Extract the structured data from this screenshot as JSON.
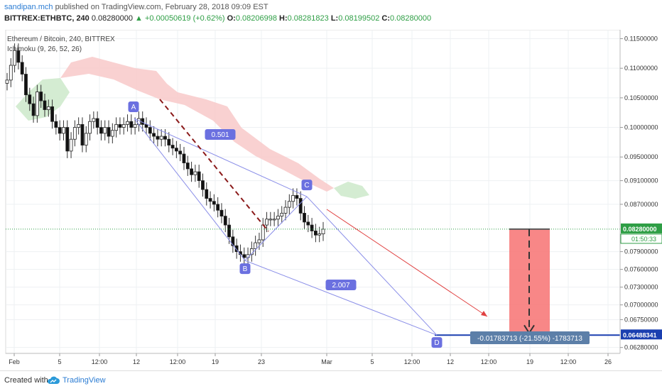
{
  "header": {
    "author": "sandipan.mch",
    "published_text": "published on TradingView.com, February 28, 2018 09:09 EST",
    "symbol": "BITTREX:ETHBTC, 240",
    "last": "0.08280000",
    "change": "▲ +0.00050619 (+0.62%)",
    "o_label": "O:",
    "o": "0.08206998",
    "h_label": "H:",
    "h": "0.08281823",
    "l_label": "L:",
    "l": "0.08199502",
    "c_label": "C:",
    "c": "0.08280000"
  },
  "legend": {
    "title": "Ethereum / Bitcoin, 240, BITTREX",
    "indicator": "Ichimoku (9, 26, 52, 26)"
  },
  "chart_data": {
    "type": "candlestick",
    "ylim": [
      0.0618,
      0.1165
    ],
    "y_ticks": [
      "0.11500000",
      "0.11000000",
      "0.10500000",
      "0.10000000",
      "0.09500000",
      "0.09100000",
      "0.08700000",
      "0.07900000",
      "0.07600000",
      "0.07300000",
      "0.07000000",
      "0.06750000",
      "0.06280000"
    ],
    "x_ticks": [
      "Feb",
      "5",
      "12:00",
      "12",
      "12:00",
      "19",
      "23",
      "Mar",
      "5",
      "12:00",
      "12",
      "12:00",
      "19",
      "12:00",
      "26"
    ],
    "price_label": "0.08280000",
    "timer_label": "01:50:33",
    "target_label": "0.06488341",
    "current_price": 0.0828,
    "target_price": 0.06488341,
    "pattern_points": [
      {
        "name": "A",
        "price": 0.1015
      },
      {
        "name": "B",
        "price": 0.0775
      },
      {
        "name": "C",
        "price": 0.0883
      },
      {
        "name": "D",
        "price": 0.0649
      }
    ],
    "ratios": [
      "0.501",
      "2.007"
    ],
    "measure_label": "-0.01783713 (-21.55%) -1783713",
    "approx_closes": [
      0.108,
      0.1105,
      0.113,
      0.111,
      0.109,
      0.1055,
      0.104,
      0.102,
      0.106,
      0.1045,
      0.103,
      0.1035,
      0.101,
      0.1,
      0.099,
      0.1,
      0.096,
      0.098,
      0.1,
      0.1005,
      0.097,
      0.099,
      0.101,
      0.1015,
      0.1,
      0.099,
      0.1,
      0.0985,
      0.0995,
      0.1005,
      0.1,
      0.1005,
      0.101,
      0.1,
      0.1005,
      0.1015,
      0.1005,
      0.1,
      0.099,
      0.0985,
      0.098,
      0.0985,
      0.098,
      0.097,
      0.0965,
      0.096,
      0.0955,
      0.094,
      0.093,
      0.092,
      0.0925,
      0.091,
      0.0895,
      0.088,
      0.0875,
      0.087,
      0.086,
      0.085,
      0.0835,
      0.0815,
      0.08,
      0.079,
      0.0785,
      0.078,
      0.0785,
      0.0795,
      0.0805,
      0.081,
      0.0835,
      0.0845,
      0.0845,
      0.0845,
      0.085,
      0.0855,
      0.0865,
      0.0875,
      0.0885,
      0.088,
      0.0855,
      0.084,
      0.0835,
      0.0825,
      0.0818,
      0.082,
      0.0828
    ]
  },
  "footer": {
    "created": "Created with",
    "brand": "TradingView"
  },
  "colors": {
    "up": "#3a3a3a",
    "down": "#111111",
    "pattern": "#8a8ee8",
    "label_bg": "#6b70e0",
    "price_line": "#2e9e45",
    "target_line": "#1a3fb0",
    "arrow": "#e04040",
    "target_box": "#f77a7a",
    "cloud_red": "#f8c9c9",
    "cloud_green": "#cfeacd"
  }
}
